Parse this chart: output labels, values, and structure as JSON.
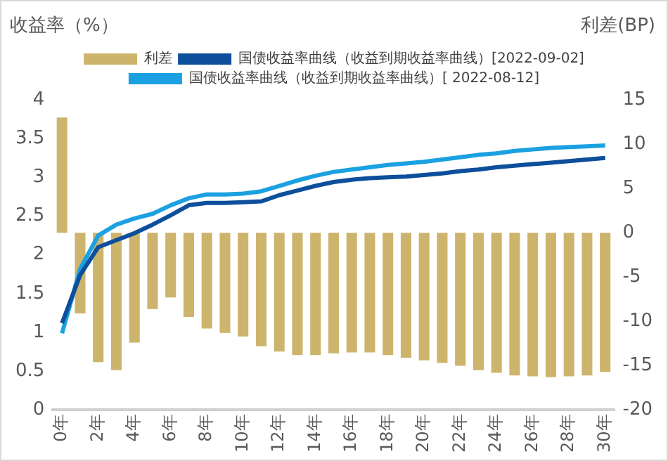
{
  "chart_data": {
    "type": "bar",
    "ylabel": "收益率（%）",
    "y2label": "利差(BP)",
    "categories": [
      "0年",
      null,
      "2年",
      null,
      "4年",
      null,
      "6年",
      null,
      "8年",
      null,
      "10年",
      null,
      "12年",
      null,
      "14年",
      null,
      "16年",
      null,
      "18年",
      null,
      "20年",
      null,
      "22年",
      null,
      "24年",
      null,
      "26年",
      null,
      "28年",
      null,
      "30年"
    ],
    "series": [
      {
        "name": "利差",
        "axis": "y2",
        "color": "#cdb46c",
        "values": [
          13,
          -9.1,
          -14.6,
          -15.5,
          -12.4,
          -8.6,
          -7.3,
          -9.5,
          -10.8,
          -11.3,
          -11.7,
          -12.8,
          -13.4,
          -13.8,
          -13.8,
          -13.6,
          -13.5,
          -13.5,
          -13.8,
          -14.1,
          -14.4,
          -14.7,
          -15,
          -15.5,
          -15.8,
          -16.1,
          -16.2,
          -16.3,
          -16.2,
          -16.1,
          -15.7
        ]
      },
      {
        "name": "国债收益率曲线（收益到期收益率曲线）[2022-09-02]",
        "type": "line",
        "color": "#0e4f9c",
        "values": [
          1.12,
          1.74,
          2.1,
          2.19,
          2.28,
          2.39,
          2.51,
          2.64,
          2.67,
          2.67,
          2.68,
          2.69,
          2.77,
          2.83,
          2.89,
          2.94,
          2.97,
          2.99,
          3.0,
          3.01,
          3.03,
          3.05,
          3.08,
          3.1,
          3.13,
          3.15,
          3.17,
          3.19,
          3.21,
          3.23,
          3.25
        ]
      },
      {
        "name": "国债收益率曲线（收益到期收益率曲线）[ 2022-08-12]",
        "type": "line",
        "color": "#1ba1e2",
        "values": [
          0.99,
          1.82,
          2.25,
          2.39,
          2.47,
          2.53,
          2.64,
          2.73,
          2.78,
          2.78,
          2.79,
          2.82,
          2.89,
          2.96,
          3.02,
          3.07,
          3.1,
          3.13,
          3.16,
          3.18,
          3.2,
          3.23,
          3.26,
          3.29,
          3.31,
          3.34,
          3.36,
          3.38,
          3.39,
          3.4,
          3.41
        ]
      }
    ],
    "ylim": [
      0,
      4
    ],
    "yticks": [
      0,
      0.5,
      1,
      1.5,
      2,
      2.5,
      3,
      3.5,
      4
    ],
    "y2lim": [
      -20,
      15
    ],
    "y2ticks": [
      -20,
      -15,
      -10,
      -5,
      0,
      5,
      10,
      15
    ],
    "legend": "top",
    "grid": false,
    "marker": "none"
  }
}
